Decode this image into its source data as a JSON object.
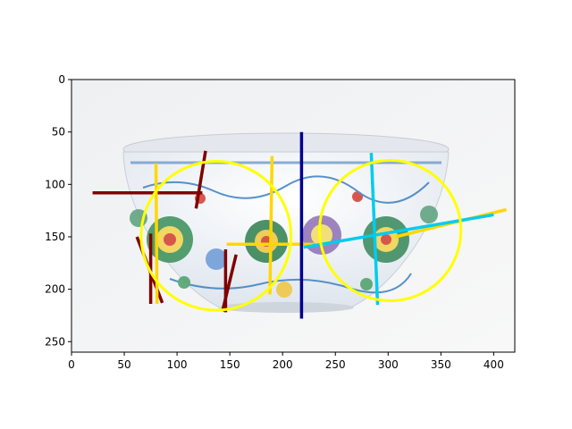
{
  "chart_data": {
    "type": "scatter",
    "title": "",
    "xlabel": "",
    "ylabel": "",
    "xlim": [
      0,
      420
    ],
    "ylim": [
      260,
      0
    ],
    "y_axis_inverted": true,
    "grid": false,
    "legend": "none",
    "xticks": [
      0,
      50,
      100,
      150,
      200,
      250,
      300,
      350,
      400
    ],
    "yticks": [
      0,
      50,
      100,
      150,
      200,
      250
    ],
    "image_background": "photo of a porcelain bowl with floral decoration",
    "overlays": {
      "circles": [
        {
          "name": "",
          "color": "#ffff00",
          "cx": 137,
          "cy": 149,
          "r": 71
        },
        {
          "name": "",
          "color": "#ffff00",
          "cx": 302,
          "cy": 144,
          "r": 67
        }
      ],
      "segments": [
        {
          "color": "#800000",
          "points": [
            [
              20,
              108
            ],
            [
              124,
              108
            ]
          ]
        },
        {
          "color": "#800000",
          "points": [
            [
              127,
              68
            ],
            [
              118,
              123
            ]
          ]
        },
        {
          "color": "#800000",
          "points": [
            [
              62,
              150
            ],
            [
              86,
              213
            ]
          ]
        },
        {
          "color": "#800000",
          "points": [
            [
              75,
              147
            ],
            [
              75,
              214
            ]
          ]
        },
        {
          "color": "#800000",
          "points": [
            [
              146,
              162
            ],
            [
              146,
              222
            ]
          ]
        },
        {
          "color": "#800000",
          "points": [
            [
              156,
              167
            ],
            [
              143,
              221
            ]
          ]
        },
        {
          "color": "#ffd700",
          "points": [
            [
              80,
              80
            ],
            [
              81,
              214
            ]
          ]
        },
        {
          "color": "#ffd700",
          "points": [
            [
              190,
              73
            ],
            [
              188,
              205
            ]
          ]
        },
        {
          "color": "#ffd700",
          "points": [
            [
              147,
              157
            ],
            [
              230,
              157
            ]
          ]
        },
        {
          "color": "#ffd700",
          "points": [
            [
              307,
              150
            ],
            [
              412,
              124
            ]
          ]
        },
        {
          "color": "#00008b",
          "points": [
            [
              218,
              50
            ],
            [
              218,
              228
            ]
          ]
        },
        {
          "color": "#00ccee",
          "points": [
            [
              284,
              70
            ],
            [
              290,
              215
            ]
          ]
        },
        {
          "color": "#00ccee",
          "points": [
            [
              220,
              160
            ],
            [
              400,
              129
            ]
          ]
        }
      ]
    }
  }
}
